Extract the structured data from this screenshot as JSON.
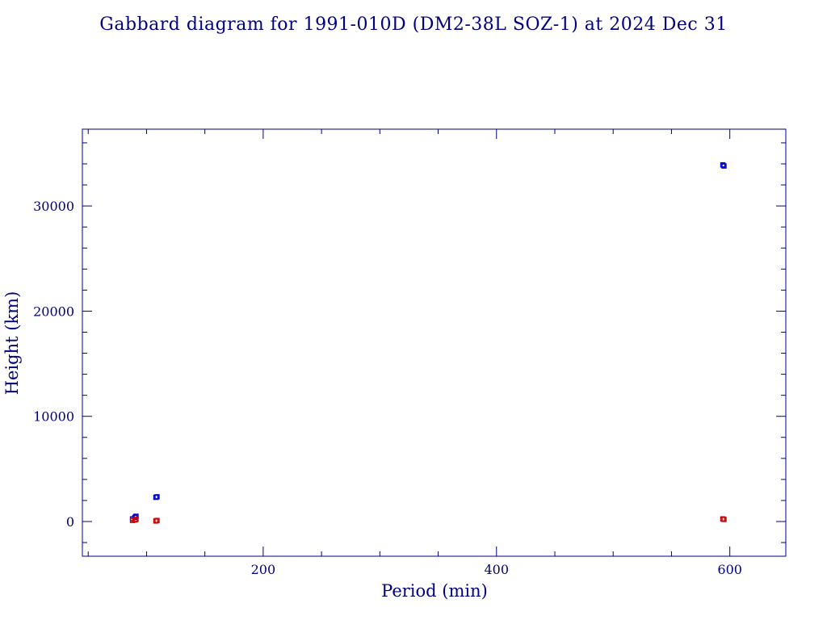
{
  "chart_data": {
    "type": "scatter",
    "title": "Gabbard diagram for 1991-010D (DM2-38L SOZ-1) at 2024 Dec 31",
    "xlabel": "Period (min)",
    "ylabel": "Height (km)",
    "xlim": [
      45,
      648
    ],
    "ylim": [
      -3300,
      37300
    ],
    "x_ticks": [
      200,
      400,
      600
    ],
    "y_ticks": [
      0,
      10000,
      20000,
      30000
    ],
    "x_minor_step": 50,
    "y_minor_step": 2000,
    "grid": false,
    "colors": {
      "frame": "#000080",
      "text": "#000080",
      "apogee": "#0000cc",
      "perigee": "#cc0000"
    },
    "series": [
      {
        "role": "apogee",
        "points": [
          {
            "x": 88,
            "y": 250
          },
          {
            "x": 90,
            "y": 400
          },
          {
            "x": 91,
            "y": 500
          },
          {
            "x": 108,
            "y": 2300
          },
          {
            "x": 109,
            "y": 2350
          },
          {
            "x": 594,
            "y": 33900
          },
          {
            "x": 595,
            "y": 33800
          }
        ]
      },
      {
        "role": "perigee",
        "points": [
          {
            "x": 88,
            "y": 100
          },
          {
            "x": 90,
            "y": 150
          },
          {
            "x": 91,
            "y": 200
          },
          {
            "x": 108,
            "y": 50
          },
          {
            "x": 109,
            "y": 100
          },
          {
            "x": 594,
            "y": 250
          },
          {
            "x": 595,
            "y": 200
          }
        ]
      }
    ]
  }
}
